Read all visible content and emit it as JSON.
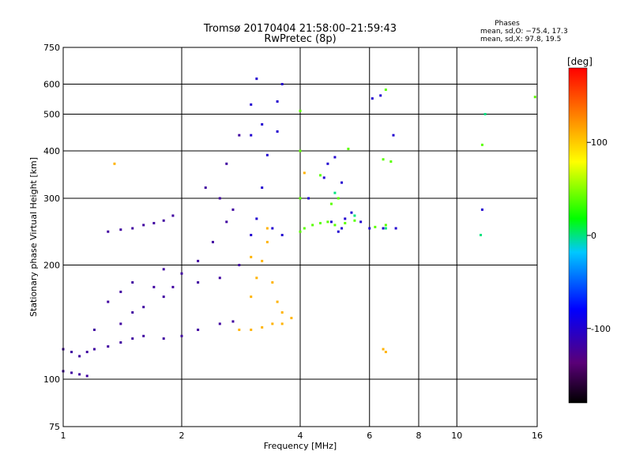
{
  "chart_data": {
    "type": "scatter",
    "title": "Tromsø 20170404 21:58:00–21:59:43",
    "subtitle": "RwPretec (8p)",
    "xlabel": "Frequency [MHz]",
    "ylabel": "Stationary phase Virtual Height [km]",
    "x_scale": "log",
    "y_scale": "log",
    "xlim": [
      1,
      16
    ],
    "ylim": [
      75,
      750
    ],
    "x_ticks": [
      1,
      2,
      4,
      6,
      8,
      10,
      16
    ],
    "y_ticks": [
      75,
      100,
      200,
      300,
      400,
      500,
      600,
      750
    ],
    "x_grid_lines": [
      2,
      4,
      6,
      8,
      10
    ],
    "y_grid_lines": [
      100,
      200,
      300,
      400,
      500,
      600
    ],
    "grid": true,
    "phase_info": {
      "heading": "Phases",
      "line_o": "mean, sd,O: −75.4, 17.3",
      "line_x": "mean, sd,X:  97.8, 19.5"
    },
    "colorbar": {
      "label": "[deg]",
      "range": [
        -180,
        180
      ],
      "ticks": [
        100,
        0,
        -100
      ],
      "colormap": "rainbow"
    },
    "series": [
      {
        "color_value": -120,
        "points": [
          [
            1.0,
            120
          ],
          [
            1.05,
            118
          ],
          [
            1.1,
            115
          ],
          [
            1.15,
            118
          ],
          [
            1.2,
            120
          ],
          [
            1.3,
            122
          ],
          [
            1.4,
            125
          ],
          [
            1.5,
            128
          ],
          [
            1.6,
            130
          ],
          [
            1.8,
            128
          ],
          [
            2.0,
            130
          ],
          [
            2.2,
            135
          ],
          [
            2.5,
            140
          ],
          [
            2.7,
            142
          ],
          [
            1.2,
            135
          ],
          [
            1.4,
            140
          ],
          [
            1.5,
            150
          ],
          [
            1.6,
            155
          ],
          [
            1.8,
            165
          ],
          [
            1.9,
            175
          ],
          [
            2.0,
            190
          ],
          [
            2.2,
            205
          ],
          [
            2.4,
            230
          ],
          [
            2.6,
            260
          ],
          [
            2.7,
            280
          ],
          [
            2.5,
            300
          ],
          [
            2.3,
            320
          ],
          [
            2.6,
            370
          ],
          [
            2.8,
            440
          ],
          [
            1.3,
            245
          ],
          [
            1.4,
            248
          ],
          [
            1.5,
            250
          ],
          [
            1.6,
            255
          ],
          [
            1.7,
            258
          ],
          [
            1.8,
            262
          ],
          [
            1.9,
            270
          ],
          [
            1.3,
            160
          ],
          [
            1.4,
            170
          ],
          [
            1.5,
            180
          ],
          [
            1.7,
            175
          ],
          [
            1.8,
            195
          ],
          [
            2.2,
            180
          ],
          [
            2.5,
            185
          ],
          [
            2.8,
            200
          ],
          [
            1.0,
            105
          ],
          [
            1.05,
            104
          ],
          [
            1.1,
            103
          ],
          [
            1.15,
            102
          ]
        ]
      },
      {
        "color_value": -100,
        "points": [
          [
            3.0,
            240
          ],
          [
            3.1,
            265
          ],
          [
            3.2,
            320
          ],
          [
            3.3,
            390
          ],
          [
            3.5,
            450
          ],
          [
            3.5,
            540
          ],
          [
            3.6,
            600
          ],
          [
            3.0,
            440
          ],
          [
            3.0,
            530
          ],
          [
            3.1,
            620
          ],
          [
            3.2,
            470
          ],
          [
            3.4,
            250
          ],
          [
            3.6,
            240
          ],
          [
            5.0,
            245
          ],
          [
            5.1,
            250
          ],
          [
            5.2,
            265
          ],
          [
            5.4,
            275
          ],
          [
            5.7,
            260
          ],
          [
            6.0,
            250
          ],
          [
            6.5,
            250
          ],
          [
            7.0,
            250
          ],
          [
            4.7,
            370
          ],
          [
            4.9,
            385
          ],
          [
            5.1,
            330
          ],
          [
            4.6,
            340
          ],
          [
            4.8,
            260
          ],
          [
            4.2,
            300
          ],
          [
            6.1,
            550
          ],
          [
            6.4,
            560
          ],
          [
            6.9,
            440
          ],
          [
            11.6,
            280
          ]
        ]
      },
      {
        "color_value": 40,
        "points": [
          [
            4.0,
            245
          ],
          [
            4.1,
            250
          ],
          [
            4.3,
            255
          ],
          [
            4.5,
            258
          ],
          [
            4.7,
            260
          ],
          [
            4.9,
            255
          ],
          [
            5.2,
            258
          ],
          [
            5.5,
            262
          ],
          [
            6.2,
            252
          ],
          [
            6.6,
            255
          ],
          [
            4.0,
            300
          ],
          [
            4.0,
            400
          ],
          [
            4.0,
            510
          ],
          [
            4.5,
            345
          ],
          [
            4.8,
            290
          ],
          [
            5.0,
            300
          ],
          [
            5.3,
            405
          ],
          [
            6.5,
            380
          ],
          [
            6.8,
            375
          ],
          [
            6.6,
            580
          ],
          [
            11.6,
            415
          ],
          [
            15.8,
            555
          ]
        ]
      },
      {
        "color_value": 110,
        "points": [
          [
            3.0,
            165
          ],
          [
            3.1,
            185
          ],
          [
            3.2,
            205
          ],
          [
            3.3,
            230
          ],
          [
            3.4,
            180
          ],
          [
            3.5,
            160
          ],
          [
            3.6,
            140
          ],
          [
            2.8,
            135
          ],
          [
            3.0,
            135
          ],
          [
            3.2,
            137
          ],
          [
            3.4,
            140
          ],
          [
            3.6,
            150
          ],
          [
            3.8,
            145
          ],
          [
            3.0,
            210
          ],
          [
            3.3,
            250
          ],
          [
            4.1,
            350
          ],
          [
            6.5,
            120
          ],
          [
            6.6,
            118
          ],
          [
            1.35,
            370
          ]
        ]
      },
      {
        "color_value": 0,
        "points": [
          [
            5.5,
            270
          ],
          [
            6.6,
            250
          ],
          [
            11.5,
            240
          ],
          [
            11.8,
            500
          ],
          [
            4.9,
            310
          ]
        ]
      }
    ]
  }
}
